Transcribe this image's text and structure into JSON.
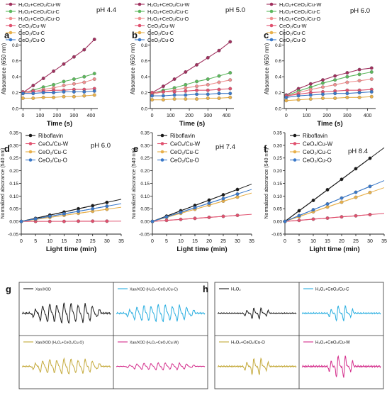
{
  "figure": {
    "ticks": {
      "top_x": [
        "0",
        "100",
        "200",
        "300",
        "400"
      ],
      "top_y": [
        "0.0",
        "0.2",
        "0.4",
        "0.6",
        "0.8"
      ],
      "mid_x": [
        "0",
        "5",
        "10",
        "15",
        "20",
        "25",
        "30",
        "35"
      ],
      "mid_y": [
        "-0.05",
        "0.00",
        "0.05",
        "0.10",
        "0.15",
        "0.20",
        "0.25",
        "0.30",
        "0.35"
      ]
    }
  },
  "chart_data": [
    {
      "panel": "a",
      "type": "line",
      "annotation": "pH 4.4",
      "xlabel": "Time (s)",
      "ylabel": "Absorance (650 nm)",
      "xlim": [
        -10,
        440
      ],
      "ylim": [
        0,
        1.0
      ],
      "grid": false,
      "legend_placement": "top-left",
      "series": [
        {
          "name": "H₂O₂+CeO₂/Cu-W",
          "color": "#a0305e",
          "x": [
            0,
            60,
            120,
            180,
            240,
            300,
            360,
            420
          ],
          "y": [
            0.2,
            0.29,
            0.38,
            0.47,
            0.56,
            0.65,
            0.74,
            0.87
          ]
        },
        {
          "name": "H₂O₂+CeO₂/Cu-C",
          "color": "#5cb85c",
          "x": [
            0,
            60,
            120,
            180,
            240,
            300,
            360,
            420
          ],
          "y": [
            0.2,
            0.23,
            0.27,
            0.3,
            0.34,
            0.37,
            0.4,
            0.44
          ]
        },
        {
          "name": "H₂O₂+CeO₂/Cu-O",
          "color": "#ef8f8f",
          "x": [
            0,
            60,
            120,
            180,
            240,
            300,
            360,
            420
          ],
          "y": [
            0.19,
            0.21,
            0.24,
            0.26,
            0.29,
            0.31,
            0.33,
            0.37
          ]
        },
        {
          "name": "CeO₂/Cu-W",
          "color": "#e0506e",
          "x": [
            0,
            60,
            120,
            180,
            240,
            300,
            360,
            420
          ],
          "y": [
            0.21,
            0.22,
            0.22,
            0.23,
            0.23,
            0.24,
            0.24,
            0.25
          ]
        },
        {
          "name": "CeO₂/Cu-C",
          "color": "#e8b04a",
          "x": [
            0,
            60,
            120,
            180,
            240,
            300,
            360,
            420
          ],
          "y": [
            0.13,
            0.13,
            0.14,
            0.14,
            0.15,
            0.15,
            0.16,
            0.17
          ]
        },
        {
          "name": "CeO₂/Cu-O",
          "color": "#3a78c8",
          "x": [
            0,
            60,
            120,
            180,
            240,
            300,
            360,
            420
          ],
          "y": [
            0.19,
            0.19,
            0.2,
            0.2,
            0.21,
            0.21,
            0.21,
            0.22
          ]
        }
      ]
    },
    {
      "panel": "b",
      "type": "line",
      "annotation": "pH 5.0",
      "xlabel": "Time (s)",
      "ylabel": "Absorance (650 nm)",
      "xlim": [
        -10,
        440
      ],
      "ylim": [
        0,
        1.0
      ],
      "grid": false,
      "legend_placement": "top-left",
      "series": [
        {
          "name": "H₂O₂+CeO₂/Cu-W",
          "color": "#a0305e",
          "x": [
            0,
            60,
            120,
            180,
            240,
            300,
            360,
            420
          ],
          "y": [
            0.2,
            0.28,
            0.37,
            0.46,
            0.55,
            0.64,
            0.73,
            0.84
          ]
        },
        {
          "name": "H₂O₂+CeO₂/Cu-C",
          "color": "#5cb85c",
          "x": [
            0,
            60,
            120,
            180,
            240,
            300,
            360,
            420
          ],
          "y": [
            0.19,
            0.23,
            0.26,
            0.3,
            0.34,
            0.37,
            0.41,
            0.45
          ]
        },
        {
          "name": "H₂O₂+CeO₂/Cu-O",
          "color": "#ef8f8f",
          "x": [
            0,
            60,
            120,
            180,
            240,
            300,
            360,
            420
          ],
          "y": [
            0.18,
            0.21,
            0.23,
            0.26,
            0.28,
            0.3,
            0.33,
            0.36
          ]
        },
        {
          "name": "CeO₂/Cu-W",
          "color": "#e0506e",
          "x": [
            0,
            60,
            120,
            180,
            240,
            300,
            360,
            420
          ],
          "y": [
            0.2,
            0.21,
            0.21,
            0.22,
            0.23,
            0.23,
            0.24,
            0.25
          ]
        },
        {
          "name": "CeO₂/Cu-C",
          "color": "#e8b04a",
          "x": [
            0,
            60,
            120,
            180,
            240,
            300,
            360,
            420
          ],
          "y": [
            0.11,
            0.11,
            0.12,
            0.12,
            0.12,
            0.13,
            0.13,
            0.14
          ]
        },
        {
          "name": "CeO₂/Cu-O",
          "color": "#3a78c8",
          "x": [
            0,
            60,
            120,
            180,
            240,
            300,
            360,
            420
          ],
          "y": [
            0.16,
            0.16,
            0.17,
            0.17,
            0.18,
            0.18,
            0.19,
            0.19
          ]
        }
      ]
    },
    {
      "panel": "c",
      "type": "line",
      "annotation": "pH 6.0",
      "xlabel": "Time (s)",
      "ylabel": "Absorance (650 nm)",
      "xlim": [
        -10,
        440
      ],
      "ylim": [
        0,
        1.0
      ],
      "grid": false,
      "legend_placement": "top-left",
      "series": [
        {
          "name": "H₂O₂+CeO₂/Cu-W",
          "color": "#a0305e",
          "x": [
            0,
            60,
            120,
            180,
            240,
            300,
            360,
            420
          ],
          "y": [
            0.17,
            0.25,
            0.31,
            0.36,
            0.41,
            0.45,
            0.49,
            0.51
          ]
        },
        {
          "name": "H₂O₂+CeO₂/Cu-C",
          "color": "#5cb85c",
          "x": [
            0,
            60,
            120,
            180,
            240,
            300,
            360,
            420
          ],
          "y": [
            0.16,
            0.22,
            0.27,
            0.32,
            0.36,
            0.4,
            0.43,
            0.46
          ]
        },
        {
          "name": "H₂O₂+CeO₂/Cu-O",
          "color": "#ef8f8f",
          "x": [
            0,
            60,
            120,
            180,
            240,
            300,
            360,
            420
          ],
          "y": [
            0.15,
            0.2,
            0.24,
            0.27,
            0.3,
            0.33,
            0.35,
            0.37
          ]
        },
        {
          "name": "CeO₂/Cu-W",
          "color": "#e0506e",
          "x": [
            0,
            60,
            120,
            180,
            240,
            300,
            360,
            420
          ],
          "y": [
            0.16,
            0.18,
            0.2,
            0.21,
            0.22,
            0.23,
            0.23,
            0.24
          ]
        },
        {
          "name": "CeO₂/Cu-C",
          "color": "#e8b04a",
          "x": [
            0,
            60,
            120,
            180,
            240,
            300,
            360,
            420
          ],
          "y": [
            0.1,
            0.11,
            0.12,
            0.13,
            0.13,
            0.14,
            0.14,
            0.15
          ]
        },
        {
          "name": "CeO₂/Cu-O",
          "color": "#3a78c8",
          "x": [
            0,
            60,
            120,
            180,
            240,
            300,
            360,
            420
          ],
          "y": [
            0.14,
            0.16,
            0.17,
            0.18,
            0.19,
            0.19,
            0.2,
            0.21
          ]
        }
      ]
    },
    {
      "panel": "d",
      "type": "line",
      "annotation": "pH 6.0",
      "xlabel": "Light time (min)",
      "ylabel": "Normalized absorance (540 nm)",
      "xlim": [
        0,
        35
      ],
      "ylim": [
        -0.05,
        0.35
      ],
      "grid": false,
      "legend_placement": "top-left",
      "series": [
        {
          "name": "Riboflavin",
          "color": "#1a1a1a",
          "x": [
            0,
            5,
            10,
            15,
            20,
            25,
            30
          ],
          "y": [
            0.0,
            0.012,
            0.025,
            0.037,
            0.05,
            0.062,
            0.075
          ]
        },
        {
          "name": "CeO₂/Cu-W",
          "color": "#e0506e",
          "x": [
            0,
            5,
            10,
            15,
            20,
            25,
            30
          ],
          "y": [
            0.0,
            0.0,
            0.0,
            0.0,
            0.001,
            0.001,
            0.001
          ]
        },
        {
          "name": "CeO₂/Cu-C",
          "color": "#e8b04a",
          "x": [
            0,
            5,
            10,
            15,
            20,
            25,
            30
          ],
          "y": [
            0.0,
            0.008,
            0.016,
            0.024,
            0.032,
            0.04,
            0.048
          ]
        },
        {
          "name": "CeO₂/Cu-O",
          "color": "#3a78c8",
          "x": [
            0,
            5,
            10,
            15,
            20,
            25,
            30
          ],
          "y": [
            0.0,
            0.01,
            0.02,
            0.03,
            0.04,
            0.05,
            0.06
          ]
        }
      ]
    },
    {
      "panel": "e",
      "type": "line",
      "annotation": "pH 7.4",
      "xlabel": "Light time (min)",
      "ylabel": "Normalized absorance (540 nm)",
      "xlim": [
        0,
        35
      ],
      "ylim": [
        -0.05,
        0.35
      ],
      "grid": false,
      "legend_placement": "top-left",
      "series": [
        {
          "name": "Riboflavin",
          "color": "#1a1a1a",
          "x": [
            0,
            5,
            10,
            15,
            20,
            25,
            30
          ],
          "y": [
            0.0,
            0.021,
            0.042,
            0.063,
            0.084,
            0.105,
            0.126
          ]
        },
        {
          "name": "CeO₂/Cu-W",
          "color": "#e0506e",
          "x": [
            0,
            5,
            10,
            15,
            20,
            25,
            30
          ],
          "y": [
            0.0,
            0.004,
            0.008,
            0.012,
            0.016,
            0.02,
            0.024
          ]
        },
        {
          "name": "CeO₂/Cu-C",
          "color": "#e8b04a",
          "x": [
            0,
            5,
            10,
            15,
            20,
            25,
            30
          ],
          "y": [
            0.0,
            0.016,
            0.032,
            0.048,
            0.064,
            0.08,
            0.096
          ]
        },
        {
          "name": "CeO₂/Cu-O",
          "color": "#3a78c8",
          "x": [
            0,
            5,
            10,
            15,
            20,
            25,
            30
          ],
          "y": [
            0.0,
            0.018,
            0.036,
            0.054,
            0.072,
            0.09,
            0.108
          ]
        }
      ]
    },
    {
      "panel": "f",
      "type": "line",
      "annotation": "pH 8.4",
      "xlabel": "Light time (min)",
      "ylabel": "Normalized absorance (540 nm)",
      "xlim": [
        0,
        35
      ],
      "ylim": [
        -0.05,
        0.35
      ],
      "grid": false,
      "legend_placement": "top-left",
      "series": [
        {
          "name": "Riboflavin",
          "color": "#1a1a1a",
          "x": [
            0,
            5,
            10,
            15,
            20,
            25,
            30
          ],
          "y": [
            0.0,
            0.042,
            0.083,
            0.125,
            0.166,
            0.208,
            0.249
          ]
        },
        {
          "name": "CeO₂/Cu-W",
          "color": "#e0506e",
          "x": [
            0,
            5,
            10,
            15,
            20,
            25,
            30
          ],
          "y": [
            0.0,
            0.004,
            0.009,
            0.013,
            0.018,
            0.022,
            0.027
          ]
        },
        {
          "name": "CeO₂/Cu-C",
          "color": "#e8b04a",
          "x": [
            0,
            5,
            10,
            15,
            20,
            25,
            30
          ],
          "y": [
            0.0,
            0.019,
            0.038,
            0.057,
            0.076,
            0.095,
            0.114
          ]
        },
        {
          "name": "CeO₂/Cu-O",
          "color": "#3a78c8",
          "x": [
            0,
            5,
            10,
            15,
            20,
            25,
            30
          ],
          "y": [
            0.0,
            0.023,
            0.046,
            0.069,
            0.092,
            0.115,
            0.138
          ]
        }
      ]
    },
    {
      "panel": "g",
      "type": "spectra",
      "spectra": [
        {
          "label": "Xan/XOD",
          "color": "#1a1a1a",
          "relative_intensity": 1.0
        },
        {
          "label": "Xan/XOD (H₂O₂+CeO₂/Cu-C)",
          "color": "#29aee0",
          "relative_intensity": 0.85
        },
        {
          "label": "Xan/XOD (H₂O₂+CeO₂/Cu-O)",
          "color": "#c4a93a",
          "relative_intensity": 0.75
        },
        {
          "label": "Xan/XOD (H₂O₂+CeO₂/Cu-W)",
          "color": "#d42f8c",
          "relative_intensity": 0.35
        }
      ]
    },
    {
      "panel": "h",
      "type": "spectra",
      "spectra": [
        {
          "label": "H₂O₂",
          "color": "#1a1a1a",
          "relative_intensity": 0.5
        },
        {
          "label": "H₂O₂+CeO₂/Cu-C",
          "color": "#29aee0",
          "relative_intensity": 0.7
        },
        {
          "label": "H₂O₂+CeO₂/Cu-O",
          "color": "#c4a93a",
          "relative_intensity": 0.75
        },
        {
          "label": "H₂O₂+CeO₂/Cu-W",
          "color": "#d42f8c",
          "relative_intensity": 1.0
        }
      ]
    }
  ]
}
